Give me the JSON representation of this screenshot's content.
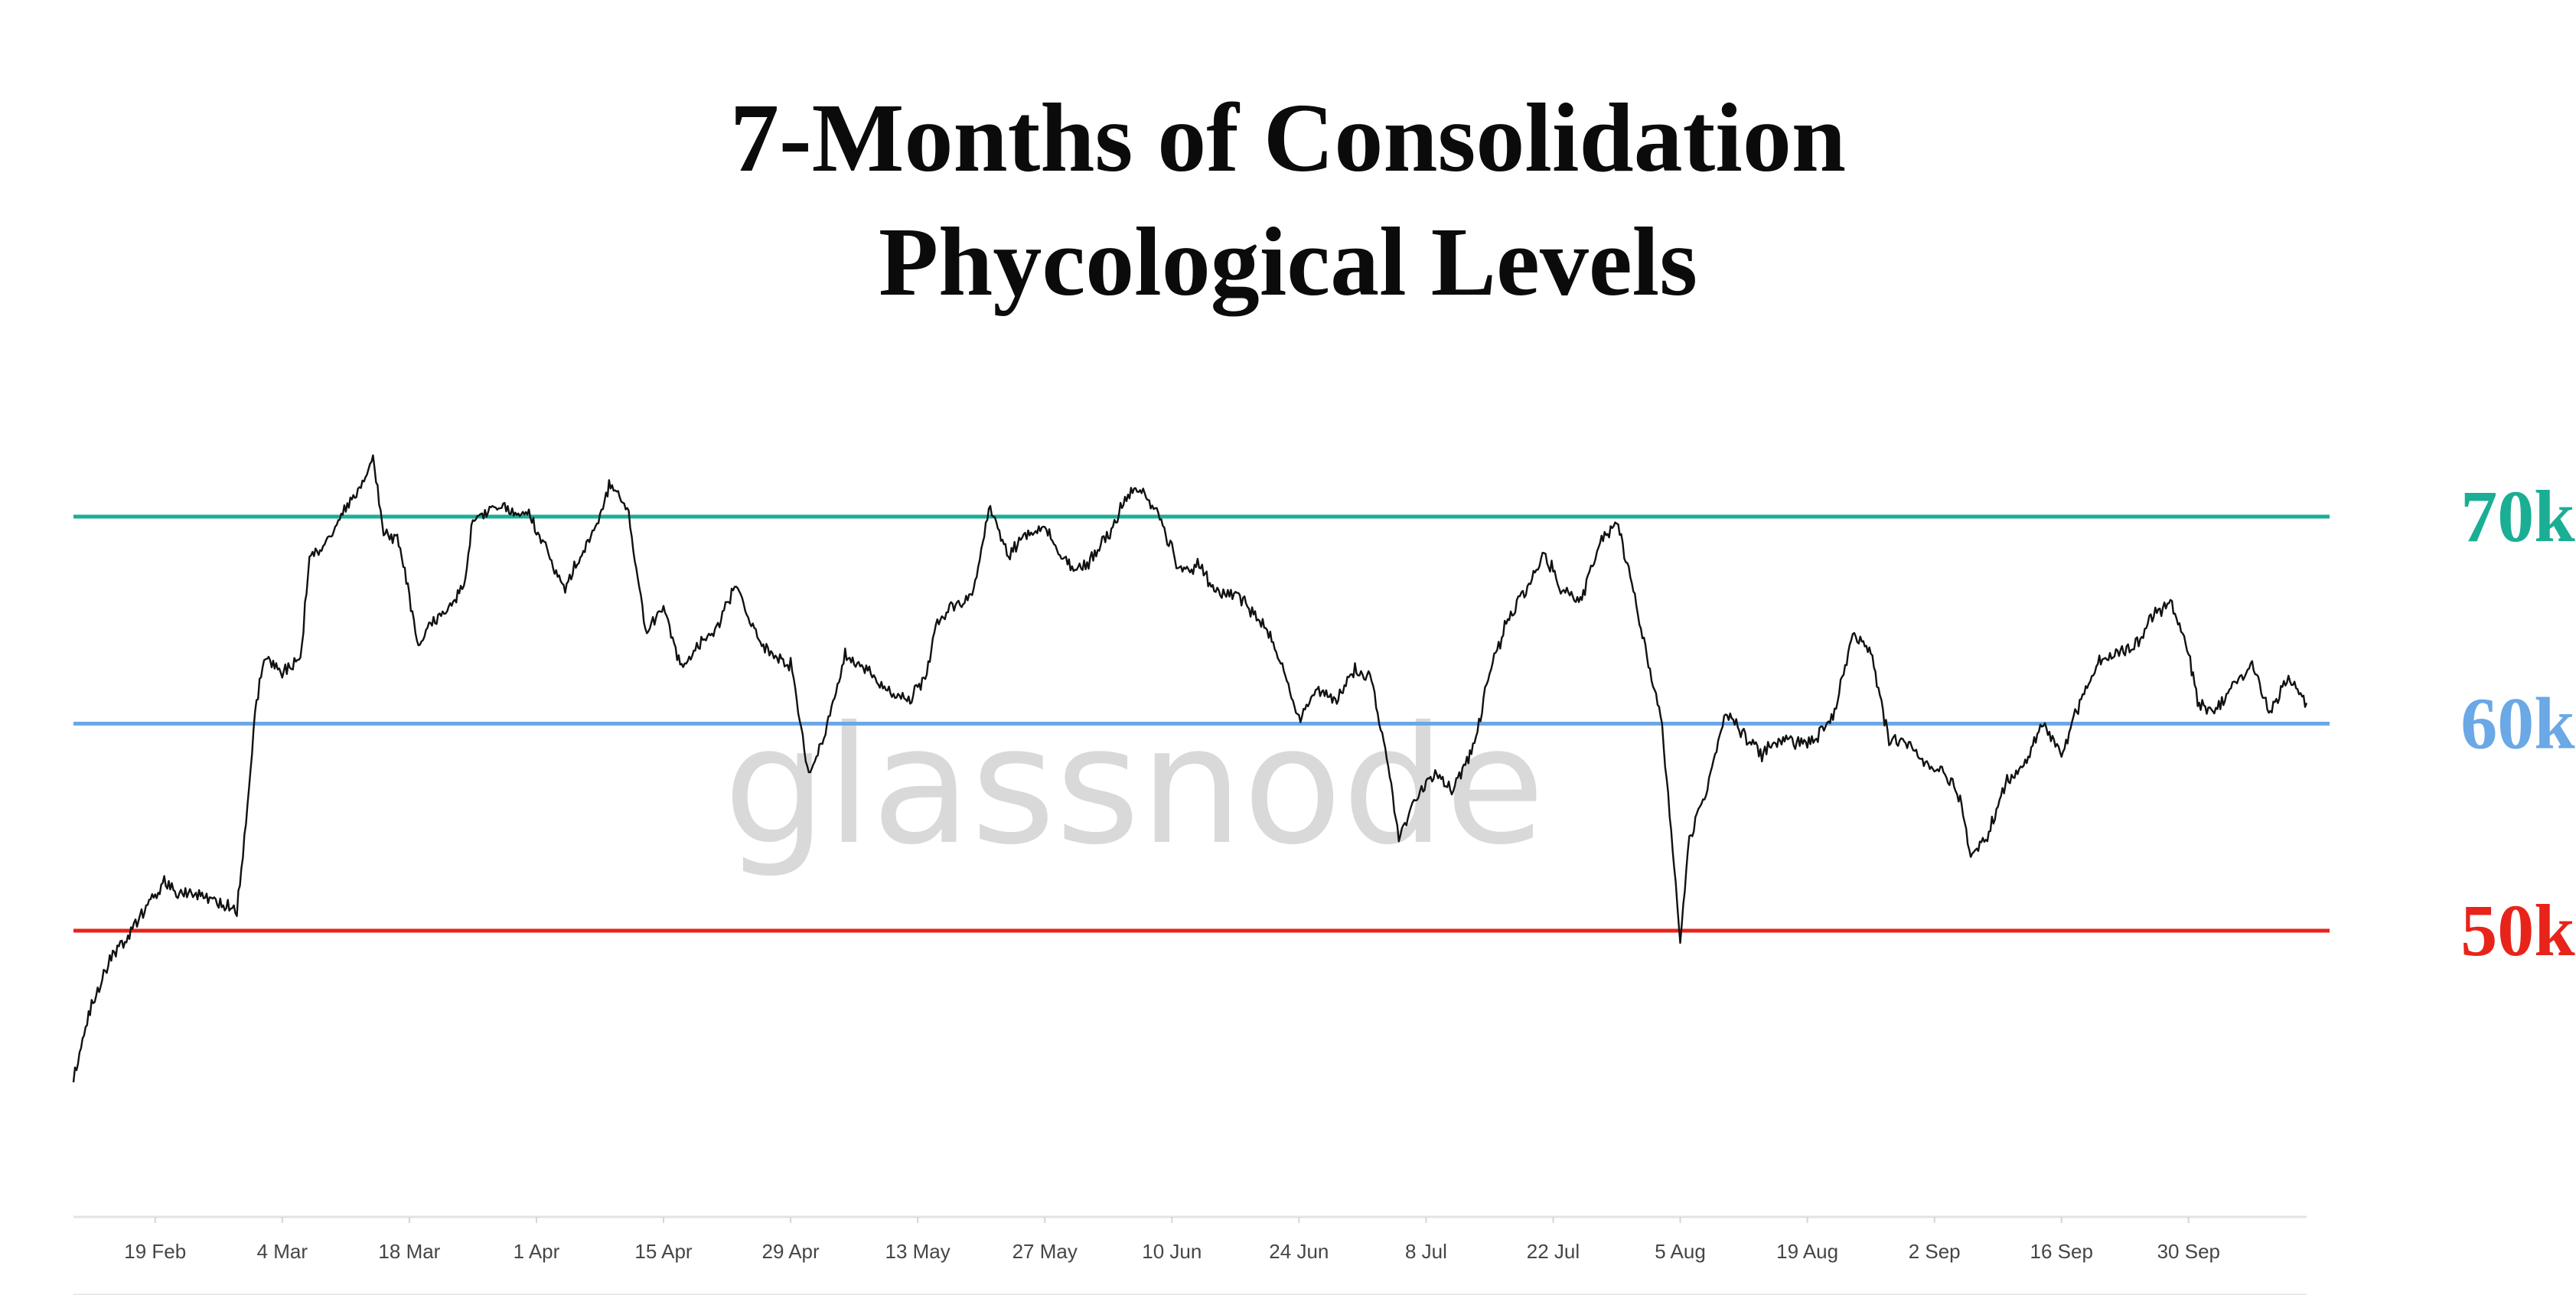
{
  "title": {
    "line1": "7-Months of Consolidation",
    "line2": "Phycological Levels"
  },
  "watermark": "glassnode",
  "colors": {
    "price": "#111111",
    "level_70k": "#1aae94",
    "level_60k": "#6aa8e6",
    "level_50k": "#e8231a",
    "axis": "#e3e3e3"
  },
  "chart_data": {
    "type": "line",
    "title": "7-Months of Consolidation\nPhycological Levels",
    "xlabel": "",
    "ylabel": "",
    "x_ticks": [
      "19 Feb",
      "4 Mar",
      "18 Mar",
      "1 Apr",
      "15 Apr",
      "29 Apr",
      "13 May",
      "27 May",
      "10 Jun",
      "24 Jun",
      "8 Jul",
      "22 Jul",
      "5 Aug",
      "19 Aug",
      "2 Sep",
      "16 Sep",
      "30 Sep"
    ],
    "x_range": [
      "2024-02-10",
      "2024-10-13"
    ],
    "ylim": [
      35000,
      80000
    ],
    "grid": false,
    "levels": [
      {
        "label": "70k",
        "value": 70000,
        "color": "#1aae94"
      },
      {
        "label": "60k",
        "value": 60000,
        "color": "#6aa8e6"
      },
      {
        "label": "50k",
        "value": 50000,
        "color": "#e8231a"
      }
    ],
    "series": [
      {
        "values": [
          [
            "2024-02-10",
            42800
          ],
          [
            "2024-02-12",
            46500
          ],
          [
            "2024-02-14",
            48500
          ],
          [
            "2024-02-16",
            49800
          ],
          [
            "2024-02-18",
            51200
          ],
          [
            "2024-02-20",
            52300
          ],
          [
            "2024-02-22",
            51700
          ],
          [
            "2024-02-24",
            51800
          ],
          [
            "2024-02-26",
            51400
          ],
          [
            "2024-02-28",
            51000
          ],
          [
            "2024-02-29",
            55000
          ],
          [
            "2024-03-01",
            60500
          ],
          [
            "2024-03-02",
            63200
          ],
          [
            "2024-03-04",
            62500
          ],
          [
            "2024-03-06",
            63000
          ],
          [
            "2024-03-07",
            68000
          ],
          [
            "2024-03-09",
            68800
          ],
          [
            "2024-03-11",
            70500
          ],
          [
            "2024-03-13",
            71800
          ],
          [
            "2024-03-14",
            72800
          ],
          [
            "2024-03-15",
            69500
          ],
          [
            "2024-03-17",
            68700
          ],
          [
            "2024-03-19",
            63500
          ],
          [
            "2024-03-20",
            64500
          ],
          [
            "2024-03-22",
            65500
          ],
          [
            "2024-03-24",
            66500
          ],
          [
            "2024-03-25",
            69800
          ],
          [
            "2024-03-27",
            70500
          ],
          [
            "2024-03-29",
            70300
          ],
          [
            "2024-03-31",
            70200
          ],
          [
            "2024-04-02",
            68500
          ],
          [
            "2024-04-04",
            66500
          ],
          [
            "2024-04-06",
            68200
          ],
          [
            "2024-04-08",
            70100
          ],
          [
            "2024-04-09",
            71600
          ],
          [
            "2024-04-11",
            70400
          ],
          [
            "2024-04-13",
            64500
          ],
          [
            "2024-04-15",
            65500
          ],
          [
            "2024-04-17",
            62700
          ],
          [
            "2024-04-19",
            63800
          ],
          [
            "2024-04-21",
            64800
          ],
          [
            "2024-04-23",
            66700
          ],
          [
            "2024-04-25",
            64400
          ],
          [
            "2024-04-27",
            63200
          ],
          [
            "2024-04-29",
            62800
          ],
          [
            "2024-05-01",
            57500
          ],
          [
            "2024-05-03",
            59800
          ],
          [
            "2024-05-05",
            63400
          ],
          [
            "2024-05-07",
            62800
          ],
          [
            "2024-05-10",
            61500
          ],
          [
            "2024-05-12",
            61000
          ],
          [
            "2024-05-14",
            62400
          ],
          [
            "2024-05-15",
            64700
          ],
          [
            "2024-05-17",
            65800
          ],
          [
            "2024-05-19",
            66200
          ],
          [
            "2024-05-21",
            70500
          ],
          [
            "2024-05-23",
            68200
          ],
          [
            "2024-05-25",
            69200
          ],
          [
            "2024-05-27",
            69500
          ],
          [
            "2024-05-29",
            67900
          ],
          [
            "2024-05-31",
            67400
          ],
          [
            "2024-06-03",
            69000
          ],
          [
            "2024-06-05",
            71000
          ],
          [
            "2024-06-07",
            71300
          ],
          [
            "2024-06-09",
            69600
          ],
          [
            "2024-06-11",
            67300
          ],
          [
            "2024-06-13",
            67700
          ],
          [
            "2024-06-15",
            66200
          ],
          [
            "2024-06-17",
            66400
          ],
          [
            "2024-06-19",
            65300
          ],
          [
            "2024-06-21",
            64200
          ],
          [
            "2024-06-24",
            60300
          ],
          [
            "2024-06-26",
            61700
          ],
          [
            "2024-06-28",
            61000
          ],
          [
            "2024-06-30",
            62600
          ],
          [
            "2024-07-02",
            62100
          ],
          [
            "2024-07-04",
            57500
          ],
          [
            "2024-07-05",
            54500
          ],
          [
            "2024-07-07",
            56500
          ],
          [
            "2024-07-09",
            57500
          ],
          [
            "2024-07-11",
            56800
          ],
          [
            "2024-07-13",
            58500
          ],
          [
            "2024-07-15",
            62500
          ],
          [
            "2024-07-17",
            65000
          ],
          [
            "2024-07-19",
            66500
          ],
          [
            "2024-07-21",
            68200
          ],
          [
            "2024-07-23",
            66500
          ],
          [
            "2024-07-25",
            65800
          ],
          [
            "2024-07-27",
            68700
          ],
          [
            "2024-07-29",
            69800
          ],
          [
            "2024-07-31",
            66000
          ],
          [
            "2024-08-02",
            61800
          ],
          [
            "2024-08-03",
            60000
          ],
          [
            "2024-08-05",
            49500
          ],
          [
            "2024-08-06",
            54500
          ],
          [
            "2024-08-08",
            57000
          ],
          [
            "2024-08-10",
            60500
          ],
          [
            "2024-08-12",
            59500
          ],
          [
            "2024-08-14",
            58500
          ],
          [
            "2024-08-16",
            59200
          ],
          [
            "2024-08-18",
            59000
          ],
          [
            "2024-08-20",
            59300
          ],
          [
            "2024-08-22",
            60500
          ],
          [
            "2024-08-24",
            64300
          ],
          [
            "2024-08-26",
            63500
          ],
          [
            "2024-08-28",
            59200
          ],
          [
            "2024-08-30",
            59100
          ],
          [
            "2024-09-01",
            58000
          ],
          [
            "2024-09-03",
            57800
          ],
          [
            "2024-09-05",
            56200
          ],
          [
            "2024-09-06",
            53500
          ],
          [
            "2024-09-08",
            54800
          ],
          [
            "2024-09-10",
            57200
          ],
          [
            "2024-09-12",
            58100
          ],
          [
            "2024-09-14",
            60000
          ],
          [
            "2024-09-16",
            58500
          ],
          [
            "2024-09-18",
            61000
          ],
          [
            "2024-09-20",
            63000
          ],
          [
            "2024-09-22",
            63400
          ],
          [
            "2024-09-24",
            63700
          ],
          [
            "2024-09-26",
            65200
          ],
          [
            "2024-09-28",
            65800
          ],
          [
            "2024-09-30",
            63500
          ],
          [
            "2024-10-01",
            61000
          ],
          [
            "2024-10-03",
            60700
          ],
          [
            "2024-10-05",
            62000
          ],
          [
            "2024-10-07",
            62800
          ],
          [
            "2024-10-09",
            60500
          ],
          [
            "2024-10-11",
            62200
          ],
          [
            "2024-10-13",
            61000
          ]
        ]
      }
    ]
  }
}
